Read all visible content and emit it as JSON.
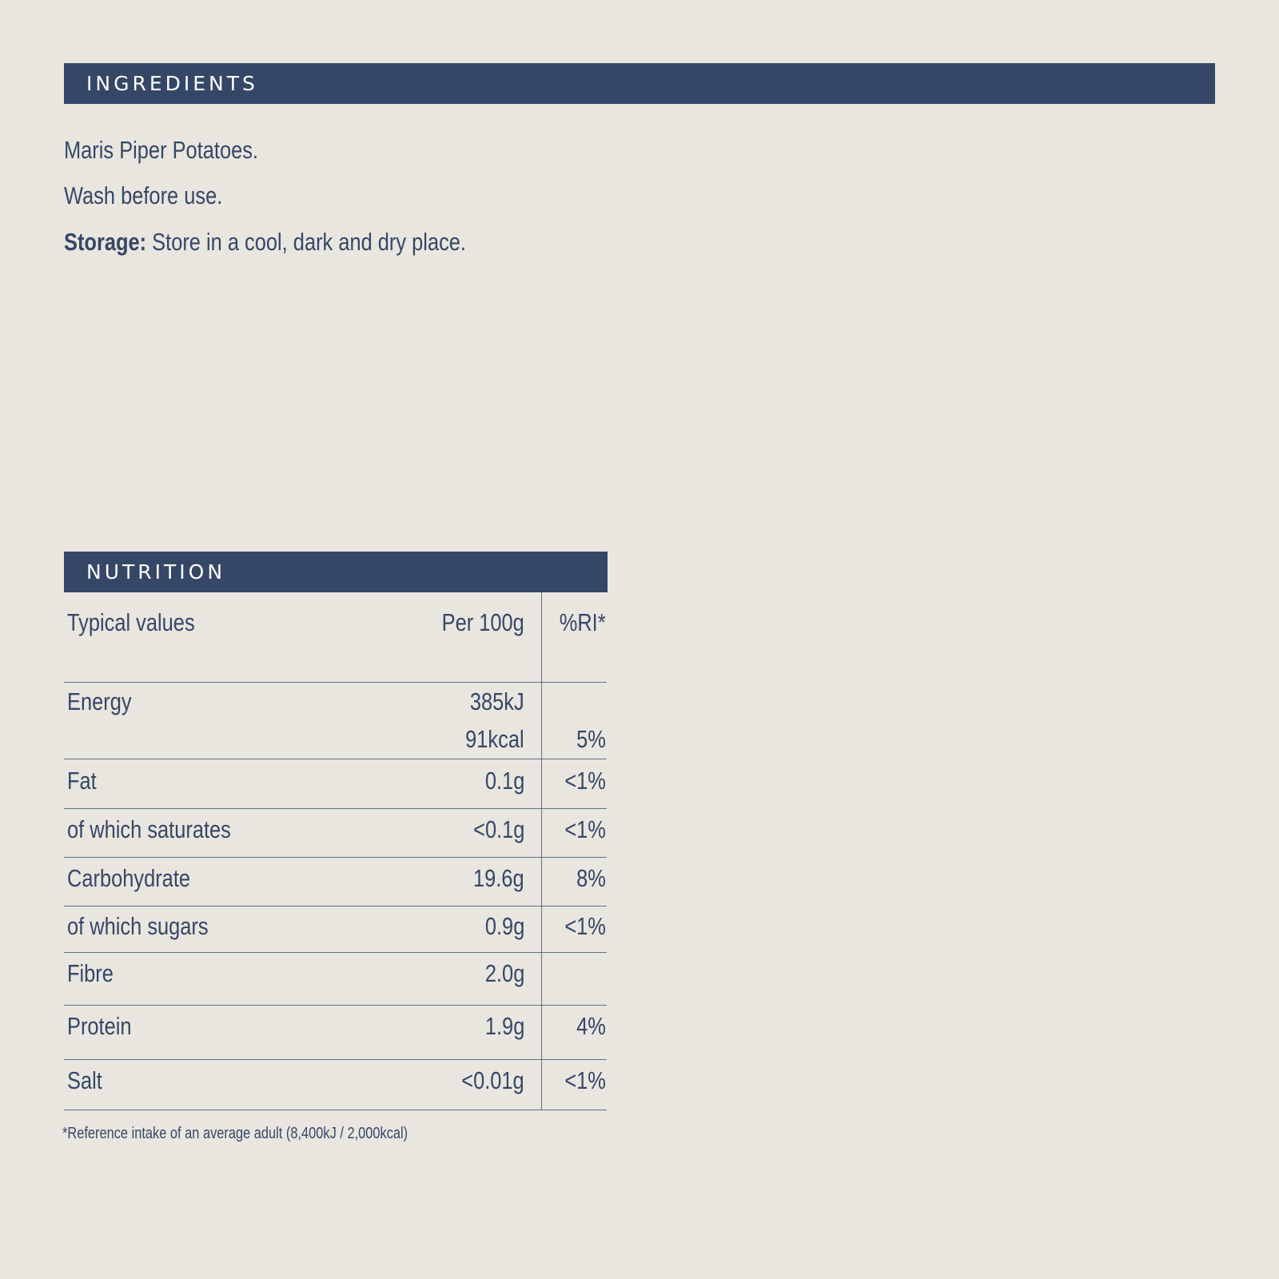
{
  "ingredients": {
    "title": "INGREDIENTS",
    "line1": "Maris Piper Potatoes.",
    "line2": "Wash before use.",
    "storage_label": "Storage:",
    "storage_text": " Store in a cool, dark and dry place."
  },
  "nutrition": {
    "title": "NUTRITION",
    "headers": {
      "typical": "Typical values",
      "per100": "Per 100g",
      "ri": "%RI*"
    },
    "rows": [
      {
        "label": "Energy",
        "value": "385kJ",
        "value2": "91kcal",
        "ri": "5%"
      },
      {
        "label": "Fat",
        "value": "0.1g",
        "ri": "<1%"
      },
      {
        "label": "of which saturates",
        "value": "<0.1g",
        "ri": "<1%"
      },
      {
        "label": "Carbohydrate",
        "value": "19.6g",
        "ri": "8%"
      },
      {
        "label": "of which sugars",
        "value": "0.9g",
        "ri": "<1%"
      },
      {
        "label": "Fibre",
        "value": "2.0g",
        "ri": ""
      },
      {
        "label": "Protein",
        "value": "1.9g",
        "ri": "4%"
      },
      {
        "label": "Salt",
        "value": "<0.01g",
        "ri": "<1%"
      }
    ],
    "footnote": "*Reference intake of an average adult (8,400kJ / 2,000kcal)"
  },
  "colors": {
    "background": "#e9e6e0",
    "navy": "#354766",
    "header_text": "#ffffff"
  }
}
